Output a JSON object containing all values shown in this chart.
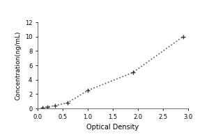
{
  "x_data": [
    0.1,
    0.188,
    0.35,
    0.6,
    1.0,
    1.9,
    2.9
  ],
  "y_data": [
    0.1,
    0.2,
    0.4,
    0.8,
    2.5,
    5.0,
    10.0
  ],
  "xlabel": "Optical Density",
  "ylabel": "Concentration(ng/mL)",
  "xlim": [
    0,
    3
  ],
  "ylim": [
    0,
    12
  ],
  "xticks": [
    0,
    0.5,
    1.0,
    1.5,
    2.0,
    2.5,
    3.0
  ],
  "yticks": [
    0,
    2,
    4,
    6,
    8,
    10,
    12
  ],
  "line_color": "#555555",
  "marker_color": "#333333",
  "marker_style": "+",
  "line_style": ":",
  "line_width": 1.2,
  "marker_size": 5,
  "xlabel_fontsize": 7,
  "ylabel_fontsize": 6.5,
  "tick_fontsize": 6,
  "background_color": "#ffffff",
  "figure_bg": "#d8d8d8"
}
